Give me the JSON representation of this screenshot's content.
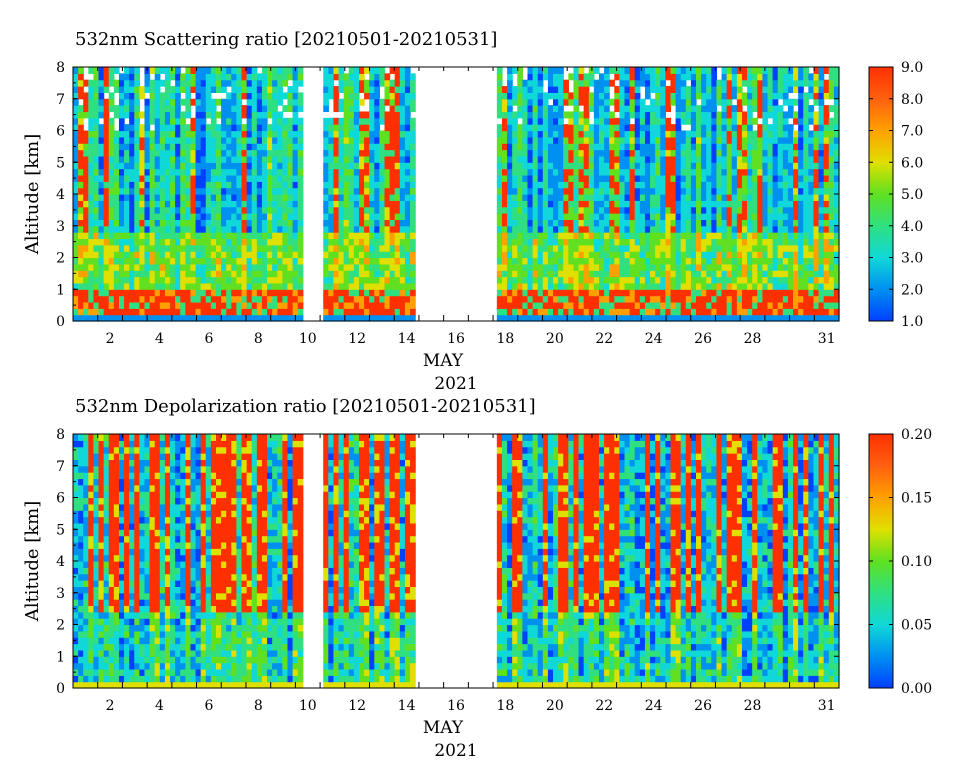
{
  "chart_data": [
    {
      "type": "heatmap",
      "title": "532nm Scattering ratio [20210501-20210531]",
      "ylabel": "Altitude [km]",
      "xlabel": "MAY",
      "xlabel2": "2021",
      "ylim": [
        0,
        8
      ],
      "xlim": [
        1,
        32
      ],
      "yticks": [
        0,
        1,
        2,
        3,
        4,
        5,
        6,
        7,
        8
      ],
      "xticks": [
        2,
        4,
        6,
        8,
        10,
        12,
        14,
        16,
        18,
        20,
        22,
        24,
        26,
        28,
        31
      ],
      "colorbar": {
        "min": 1.0,
        "max": 9.0,
        "ticks": [
          "1.0",
          "2.0",
          "3.0",
          "4.0",
          "5.0",
          "6.0",
          "7.0",
          "8.0",
          "9.0"
        ]
      },
      "no_data_gaps": [
        [
          10.5,
          11.0
        ],
        [
          15.0,
          18.0
        ]
      ],
      "colormap": [
        "#0040ff",
        "#0090f0",
        "#10d8d8",
        "#30e080",
        "#60e020",
        "#e0e000",
        "#ffa000",
        "#ff6010",
        "#ff3000"
      ]
    },
    {
      "type": "heatmap",
      "title": "532nm Depolarization ratio [20210501-20210531]",
      "ylabel": "Altitude [km]",
      "xlabel": "MAY",
      "xlabel2": "2021",
      "ylim": [
        0,
        8
      ],
      "xlim": [
        1,
        32
      ],
      "yticks": [
        0,
        1,
        2,
        3,
        4,
        5,
        6,
        7,
        8
      ],
      "xticks": [
        2,
        4,
        6,
        8,
        10,
        12,
        14,
        16,
        18,
        20,
        22,
        24,
        26,
        28,
        31
      ],
      "colorbar": {
        "min": 0.0,
        "max": 0.2,
        "ticks": [
          "0.00",
          "0.05",
          "0.10",
          "0.15",
          "0.20"
        ]
      },
      "no_data_gaps": [
        [
          10.5,
          11.0
        ],
        [
          15.0,
          18.0
        ]
      ],
      "colormap": [
        "#0040ff",
        "#0090f0",
        "#10d8d8",
        "#30e080",
        "#60e020",
        "#e0e000",
        "#ffa000",
        "#ff6010",
        "#ff3000"
      ]
    }
  ]
}
